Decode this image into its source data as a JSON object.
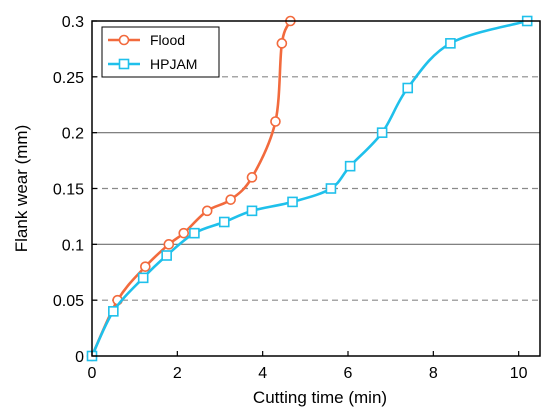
{
  "chart_data": {
    "type": "line",
    "xlabel": "Cutting time (min)",
    "ylabel": "Flank wear (mm)",
    "xlim": [
      0,
      10.5
    ],
    "ylim": [
      0,
      0.3
    ],
    "xticks": [
      0,
      2,
      4,
      6,
      8,
      10
    ],
    "yticks": [
      0,
      0.05,
      0.1,
      0.15,
      0.2,
      0.25,
      0.3
    ],
    "xtick_labels": [
      "0",
      "2",
      "4",
      "6",
      "8",
      "10"
    ],
    "ytick_labels": [
      "0",
      "0.05",
      "0.1",
      "0.15",
      "0.2",
      "0.25",
      "0.3"
    ],
    "grid": "horizontal; solid at 0.1, 0.2, 0.3 and dashed at 0.05, 0.15, 0.25",
    "legend_position": "top-left",
    "series": [
      {
        "name": "Flood",
        "color": "#f26a3d",
        "marker": "circle",
        "x": [
          0,
          0.6,
          1.25,
          1.8,
          2.15,
          2.7,
          3.25,
          3.75,
          4.3,
          4.45,
          4.65
        ],
        "y": [
          0,
          0.05,
          0.08,
          0.1,
          0.11,
          0.13,
          0.14,
          0.16,
          0.21,
          0.28,
          0.3
        ]
      },
      {
        "name": "HPJAM",
        "color": "#1fc0eb",
        "marker": "square",
        "x": [
          0,
          0.5,
          1.2,
          1.75,
          2.4,
          3.1,
          3.75,
          4.7,
          5.6,
          6.05,
          6.8,
          7.4,
          8.4,
          10.2
        ],
        "y": [
          0,
          0.04,
          0.07,
          0.09,
          0.11,
          0.12,
          0.13,
          0.138,
          0.15,
          0.17,
          0.2,
          0.24,
          0.28,
          0.3
        ]
      }
    ]
  }
}
